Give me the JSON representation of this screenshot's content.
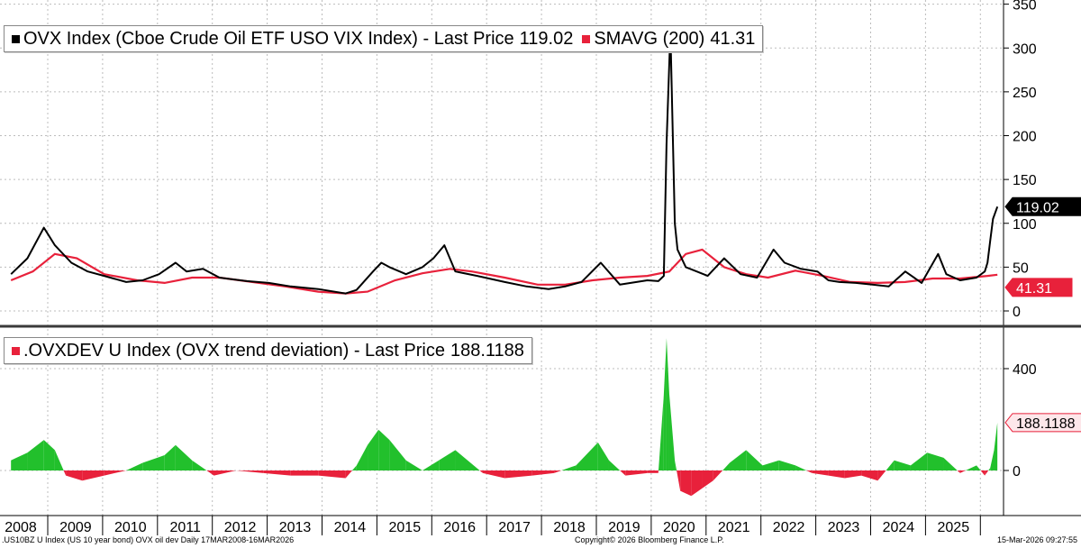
{
  "colors": {
    "ovx_line": "#000000",
    "smavg_line": "#e8213b",
    "dev_positive": "#22c02c",
    "dev_negative": "#e8213b",
    "grid": "#bcbcbc",
    "panel_divider": "#3a3a3a"
  },
  "chart_data": [
    {
      "type": "line",
      "legend": [
        {
          "name": "OVX Index (Cboe Crude Oil ETF USO VIX Index) - Last Price",
          "value": "119.02",
          "color": "#000000"
        },
        {
          "name": "SMAVG (200)",
          "value": "41.31",
          "color": "#e8213b"
        }
      ],
      "yticks": [
        "0",
        "50",
        "100",
        "150",
        "200",
        "250",
        "300",
        "350"
      ],
      "ylim": [
        0,
        350
      ],
      "last_value_tags": [
        {
          "label": "119.02",
          "value": 119.02,
          "bg": "#000000",
          "fg": "#ffffff"
        },
        {
          "label": "41.31",
          "value": 41.31,
          "bg": "#e8213b",
          "fg": "#ffffff"
        }
      ],
      "series": [
        {
          "name": "OVX Index",
          "x": [
            2008.2,
            2008.5,
            2008.8,
            2008.9,
            2009.0,
            2009.3,
            2009.6,
            2009.9,
            2010.3,
            2010.6,
            2010.9,
            2011.2,
            2011.4,
            2011.7,
            2012.0,
            2012.5,
            2012.9,
            2013.3,
            2013.8,
            2014.3,
            2014.5,
            2014.8,
            2014.95,
            2015.1,
            2015.4,
            2015.7,
            2015.9,
            2016.1,
            2016.3,
            2016.7,
            2017.2,
            2017.6,
            2018.0,
            2018.3,
            2018.6,
            2018.95,
            2019.3,
            2019.8,
            2020.0,
            2020.1,
            2020.15,
            2020.22,
            2020.3,
            2020.35,
            2020.5,
            2020.7,
            2020.9,
            2021.2,
            2021.5,
            2021.8,
            2022.1,
            2022.3,
            2022.6,
            2022.9,
            2023.1,
            2023.3,
            2023.6,
            2023.9,
            2024.2,
            2024.5,
            2024.8,
            2025.1,
            2025.25,
            2025.5,
            2025.8,
            2025.95,
            2026.0,
            2026.05,
            2026.1,
            2026.18
          ],
          "y": [
            42,
            60,
            95,
            85,
            75,
            55,
            45,
            40,
            33,
            35,
            42,
            55,
            45,
            48,
            38,
            34,
            32,
            28,
            25,
            20,
            24,
            45,
            55,
            50,
            42,
            50,
            60,
            75,
            45,
            40,
            33,
            28,
            25,
            28,
            33,
            55,
            30,
            35,
            34,
            40,
            190,
            320,
            100,
            70,
            50,
            45,
            40,
            60,
            42,
            38,
            70,
            55,
            48,
            45,
            35,
            33,
            32,
            30,
            28,
            45,
            32,
            65,
            42,
            35,
            38,
            45,
            55,
            80,
            105,
            119.02
          ]
        },
        {
          "name": "SMAVG (200)",
          "x": [
            2008.2,
            2008.6,
            2009.0,
            2009.4,
            2009.9,
            2010.5,
            2011.0,
            2011.5,
            2012.0,
            2012.6,
            2013.2,
            2013.8,
            2014.3,
            2014.7,
            2015.2,
            2015.7,
            2016.2,
            2016.6,
            2017.2,
            2017.8,
            2018.3,
            2018.8,
            2019.3,
            2019.8,
            2020.2,
            2020.5,
            2020.8,
            2021.2,
            2021.6,
            2022.0,
            2022.5,
            2023.0,
            2023.5,
            2024.0,
            2024.5,
            2025.0,
            2025.5,
            2026.0,
            2026.18
          ],
          "y": [
            35,
            45,
            65,
            60,
            42,
            35,
            32,
            38,
            38,
            33,
            28,
            22,
            20,
            22,
            35,
            43,
            48,
            45,
            38,
            30,
            30,
            35,
            38,
            40,
            45,
            65,
            70,
            50,
            42,
            38,
            46,
            40,
            33,
            32,
            33,
            37,
            37,
            40,
            41.31
          ]
        }
      ]
    },
    {
      "type": "area",
      "legend": [
        {
          "name": ".OVXDEV U Index (OVX trend deviation) - Last Price",
          "value": "188.1188",
          "color": "#e8213b"
        }
      ],
      "yticks": [
        "0",
        "400"
      ],
      "ylim": [
        -100,
        600
      ],
      "last_value_tags": [
        {
          "label": "188.1188",
          "value": 188.1188,
          "bg": "#fde7ea",
          "fg": "#000000"
        }
      ],
      "series": [
        {
          "name": ".OVXDEV U Index",
          "x": [
            2008.2,
            2008.5,
            2008.8,
            2009.0,
            2009.2,
            2009.5,
            2009.9,
            2010.3,
            2010.6,
            2011.0,
            2011.2,
            2011.5,
            2011.9,
            2012.3,
            2012.8,
            2013.3,
            2013.8,
            2014.3,
            2014.5,
            2014.7,
            2014.9,
            2015.1,
            2015.4,
            2015.7,
            2016.0,
            2016.3,
            2016.8,
            2017.2,
            2017.7,
            2018.1,
            2018.5,
            2018.9,
            2019.1,
            2019.4,
            2019.8,
            2020.0,
            2020.1,
            2020.15,
            2020.2,
            2020.3,
            2020.4,
            2020.6,
            2020.8,
            2021.0,
            2021.3,
            2021.6,
            2021.9,
            2022.2,
            2022.5,
            2022.8,
            2023.1,
            2023.4,
            2023.7,
            2024.0,
            2024.3,
            2024.6,
            2024.9,
            2025.2,
            2025.5,
            2025.8,
            2025.95,
            2026.05,
            2026.12,
            2026.18
          ],
          "y": [
            40,
            70,
            120,
            80,
            -20,
            -40,
            -20,
            0,
            30,
            60,
            100,
            40,
            -20,
            0,
            -10,
            -20,
            -20,
            -30,
            20,
            100,
            160,
            120,
            40,
            0,
            40,
            80,
            -10,
            -30,
            -20,
            -10,
            20,
            110,
            40,
            -20,
            -10,
            -10,
            300,
            520,
            300,
            40,
            -80,
            -100,
            -70,
            -40,
            30,
            80,
            20,
            40,
            20,
            -10,
            -20,
            -30,
            -20,
            -40,
            40,
            20,
            70,
            50,
            -10,
            20,
            -20,
            10,
            80,
            188.1188
          ]
        }
      ]
    }
  ],
  "x_axis": {
    "years": [
      "2008",
      "2009",
      "2010",
      "2011",
      "2012",
      "2013",
      "2014",
      "2015",
      "2016",
      "2017",
      "2018",
      "2019",
      "2020",
      "2021",
      "2022",
      "2023",
      "2024",
      "2025"
    ]
  },
  "footer": {
    "left": ".US10BZ U Index (US 10 year bond) OVX oil dev Daily 17MAR2008-16MAR2026",
    "center": "Copyright© 2026 Bloomberg Finance L.P.",
    "right": "15-Mar-2026 09:27:55"
  }
}
